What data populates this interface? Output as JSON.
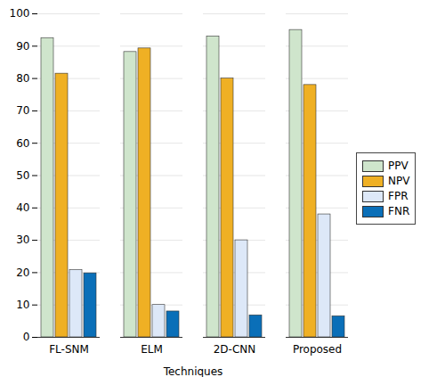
{
  "chart_data": {
    "type": "bar",
    "categories": [
      "FL-SNM",
      "ELM",
      "2D-CNN",
      "Proposed"
    ],
    "series": [
      {
        "name": "PPV",
        "color": "#cfe5cc",
        "values": [
          92.5,
          88.2,
          93,
          95
        ]
      },
      {
        "name": "NPV",
        "color": "#efb024",
        "values": [
          81.5,
          89.3,
          80,
          78
        ]
      },
      {
        "name": "FPR",
        "color": "#dde8f8",
        "values": [
          20.8,
          10,
          30,
          38
        ]
      },
      {
        "name": "FNR",
        "color": "#0a6fb8",
        "values": [
          19.8,
          8,
          6.8,
          6.5
        ]
      }
    ],
    "xlabel": "Techniques",
    "ylim": [
      0,
      100
    ],
    "yticks": [
      0,
      10,
      20,
      30,
      40,
      50,
      60,
      70,
      80,
      90,
      100
    ],
    "grid": true,
    "legend": "right"
  }
}
